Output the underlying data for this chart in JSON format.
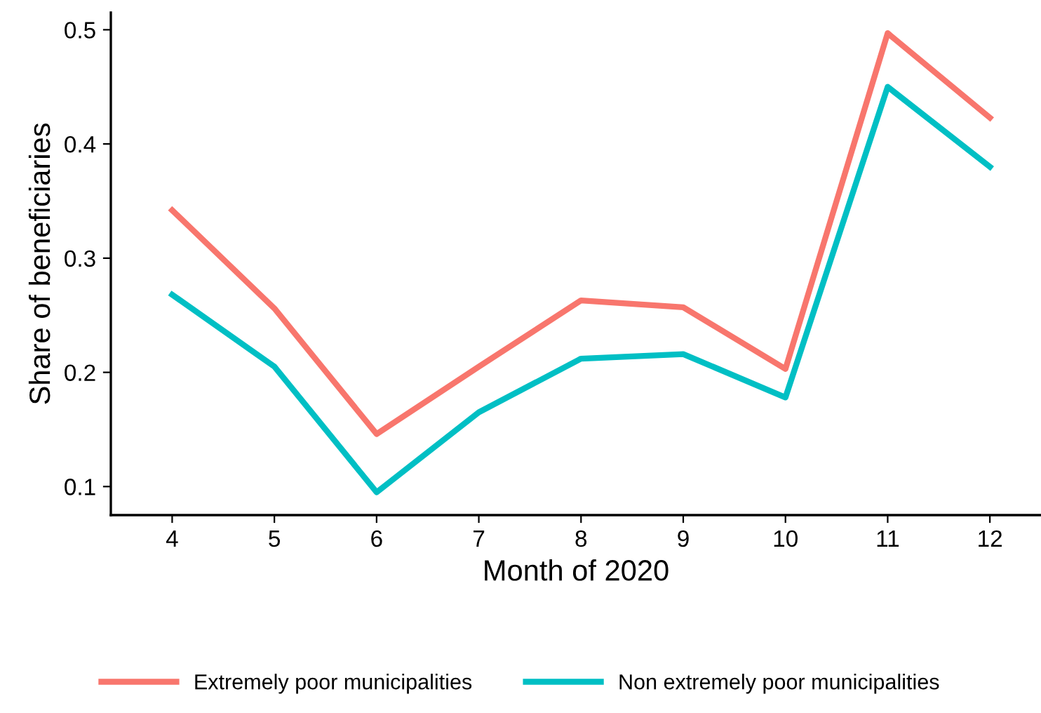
{
  "chart_data": {
    "type": "line",
    "xlabel": "Month of 2020",
    "ylabel": "Share of beneficiaries",
    "x": [
      4,
      5,
      6,
      7,
      8,
      9,
      10,
      11,
      12
    ],
    "series": [
      {
        "name": "Extremely poor municipalities",
        "color": "#f8766d",
        "values": [
          0.342,
          0.256,
          0.146,
          0.205,
          0.263,
          0.257,
          0.203,
          0.497,
          0.423
        ]
      },
      {
        "name": "Non extremely poor municipalities",
        "color": "#00bfc4",
        "values": [
          0.268,
          0.205,
          0.095,
          0.165,
          0.212,
          0.216,
          0.178,
          0.45,
          0.38
        ]
      }
    ],
    "xlim": [
      3.4,
      12.5
    ],
    "xticks": [
      4,
      5,
      6,
      7,
      8,
      9,
      10,
      11,
      12
    ],
    "ylim": [
      0.075,
      0.515
    ],
    "yticks": [
      0.1,
      0.2,
      0.3,
      0.4,
      0.5
    ],
    "grid": false,
    "legend": "bottom",
    "marker": "none",
    "line_style": "solid"
  }
}
